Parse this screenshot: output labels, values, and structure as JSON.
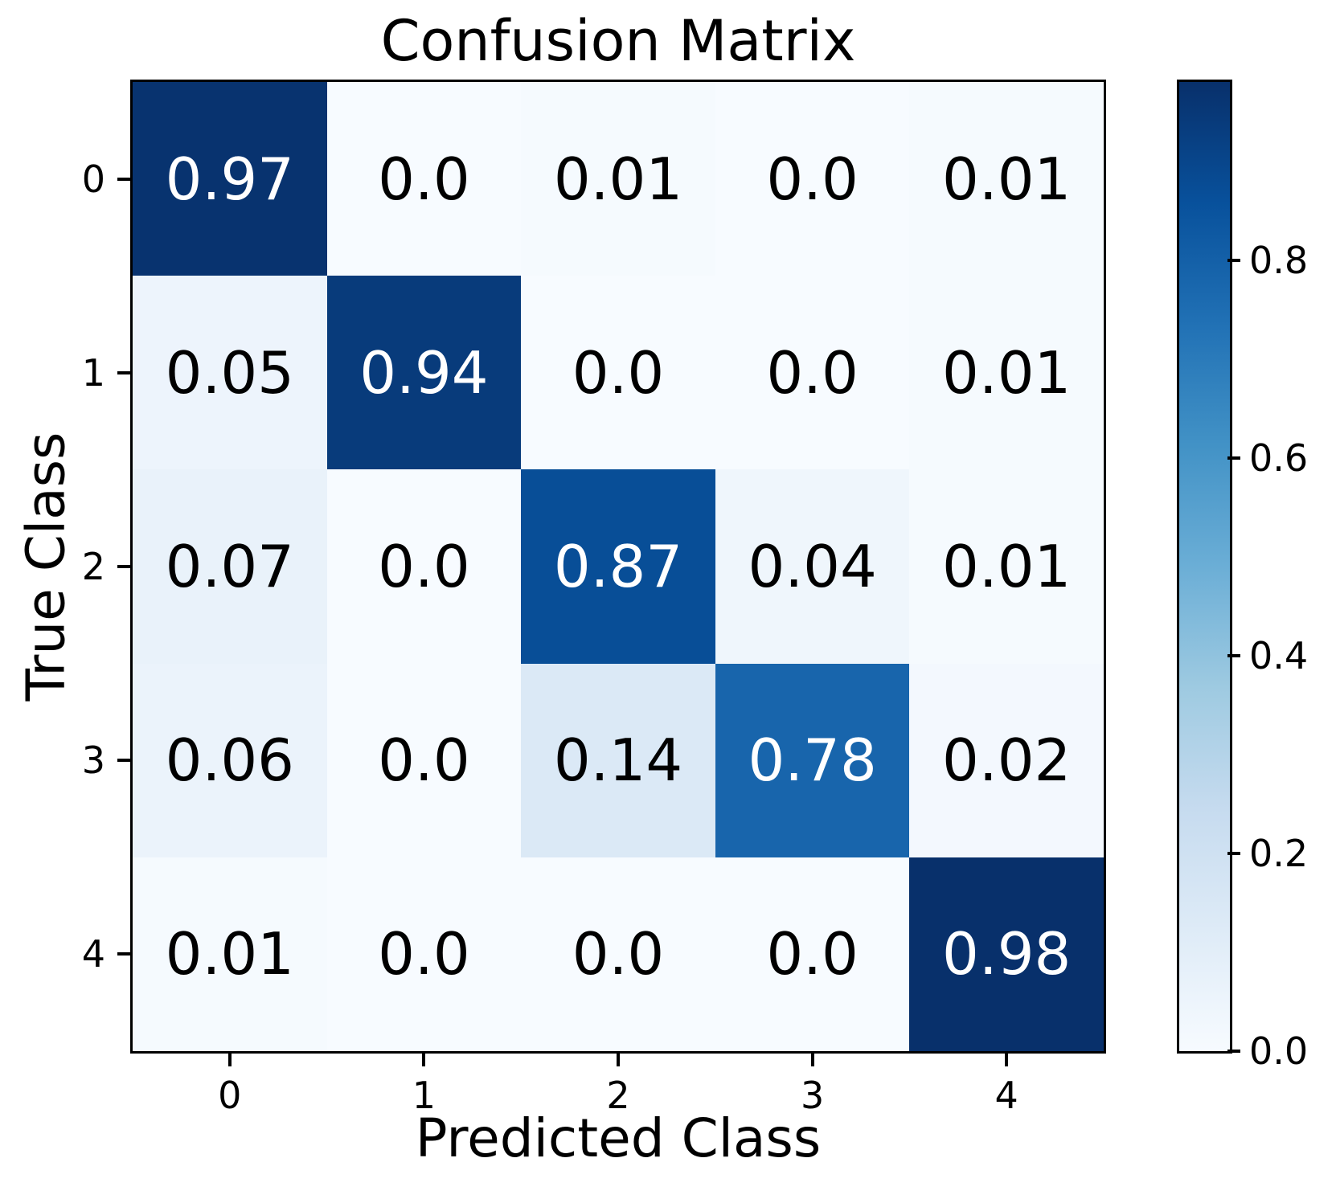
{
  "chart_data": {
    "type": "heatmap",
    "title": "Confusion Matrix",
    "xlabel": "Predicted Class",
    "ylabel": "True Class",
    "x_tick_labels": [
      "0",
      "1",
      "2",
      "3",
      "4"
    ],
    "y_tick_labels": [
      "0",
      "1",
      "2",
      "3",
      "4"
    ],
    "matrix": [
      [
        0.97,
        0.0,
        0.01,
        0.0,
        0.01
      ],
      [
        0.05,
        0.94,
        0.0,
        0.0,
        0.01
      ],
      [
        0.07,
        0.0,
        0.87,
        0.04,
        0.01
      ],
      [
        0.06,
        0.0,
        0.14,
        0.78,
        0.02
      ],
      [
        0.01,
        0.0,
        0.0,
        0.0,
        0.98
      ]
    ],
    "cell_labels": [
      [
        "0.97",
        "0.0",
        "0.01",
        "0.0",
        "0.01"
      ],
      [
        "0.05",
        "0.94",
        "0.0",
        "0.0",
        "0.01"
      ],
      [
        "0.07",
        "0.0",
        "0.87",
        "0.04",
        "0.01"
      ],
      [
        "0.06",
        "0.0",
        "0.14",
        "0.78",
        "0.02"
      ],
      [
        "0.01",
        "0.0",
        "0.0",
        "0.0",
        "0.98"
      ]
    ],
    "colormap": "Blues",
    "vmin": 0.0,
    "vmax": 0.98,
    "grid": false,
    "legend": "colorbar-right",
    "colorbar_ticks": [
      {
        "label": "0.8",
        "value": 0.8
      },
      {
        "label": "0.6",
        "value": 0.6
      },
      {
        "label": "0.4",
        "value": 0.4
      },
      {
        "label": "0.2",
        "value": 0.2
      },
      {
        "label": "0.0",
        "value": 0.0
      }
    ],
    "colors": {
      "blues_anchors": [
        "#f7fbff",
        "#deebf7",
        "#c6dbef",
        "#9ecae1",
        "#6baed6",
        "#4292c6",
        "#2171b5",
        "#08519c",
        "#08306b"
      ],
      "cell_text_light": "#ffffff",
      "cell_text_dark": "#000000",
      "spine": "#000000",
      "background": "#ffffff"
    }
  }
}
